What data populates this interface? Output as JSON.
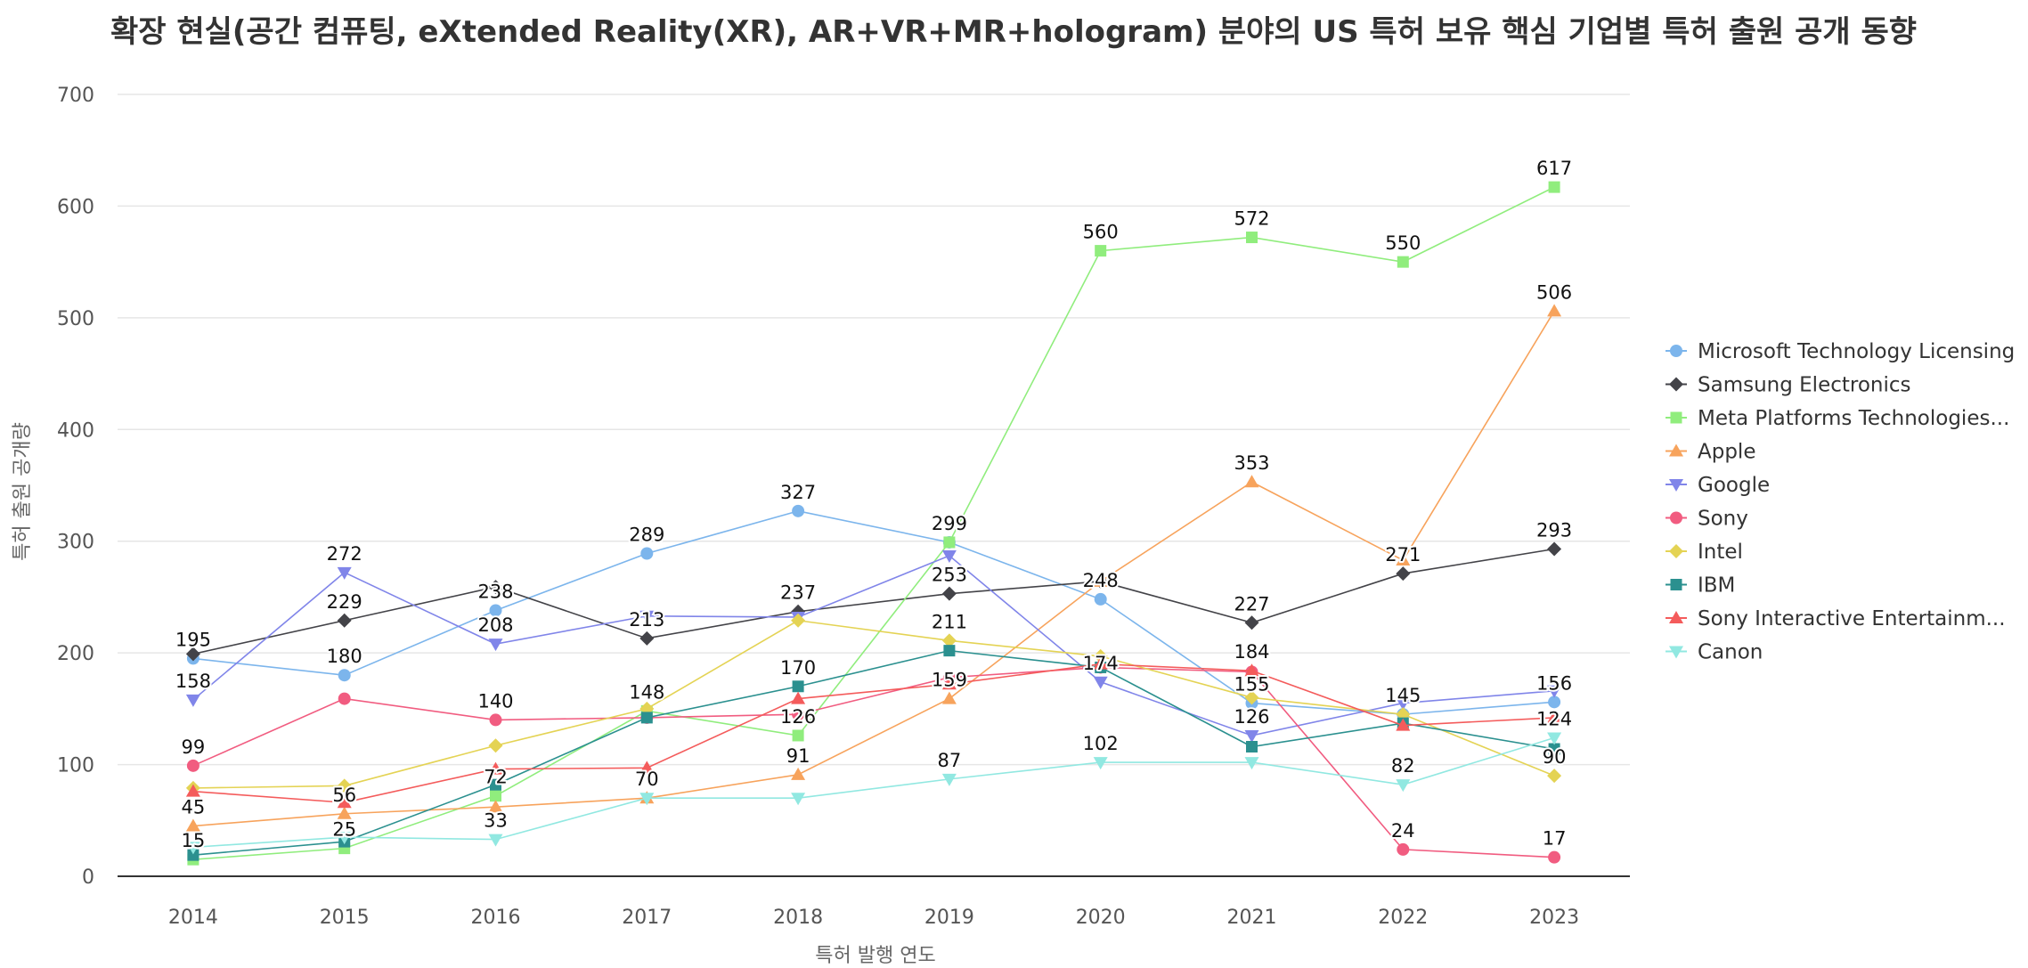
{
  "chart_data": {
    "type": "line",
    "title": "확장 현실(공간 컴퓨팅, eXtended Reality(XR), AR+VR+MR+hologram) 분야의 US 특허 보유 핵심 기업별 특허 출원 공개 동향",
    "xlabel": "특허 발행 연도",
    "ylabel": "특허 출원 공개량",
    "ylim": [
      0,
      700
    ],
    "yticks": [
      0,
      100,
      200,
      300,
      400,
      500,
      600,
      700
    ],
    "categories": [
      "2014",
      "2015",
      "2016",
      "2017",
      "2018",
      "2019",
      "2020",
      "2021",
      "2022",
      "2023"
    ],
    "grid": true,
    "legend_position": "right",
    "series": [
      {
        "name": "Microsoft Technology Licensing",
        "color": "#7cb5ec",
        "marker": "circle",
        "values": [
          195,
          180,
          238,
          289,
          327,
          299,
          248,
          155,
          145,
          156
        ]
      },
      {
        "name": "Samsung Electronics",
        "color": "#434348",
        "marker": "diamond",
        "values": [
          199,
          229,
          259,
          213,
          237,
          253,
          264,
          227,
          271,
          293
        ]
      },
      {
        "name": "Meta Platforms Technologies...",
        "color": "#90ed7d",
        "marker": "square",
        "values": [
          15,
          25,
          72,
          148,
          126,
          299,
          560,
          572,
          550,
          617
        ]
      },
      {
        "name": "Apple",
        "color": "#f7a35c",
        "marker": "triangle",
        "values": [
          45,
          56,
          62,
          70,
          91,
          159,
          264,
          353,
          283,
          506
        ]
      },
      {
        "name": "Google",
        "color": "#8085e9",
        "marker": "triangle-down",
        "values": [
          158,
          272,
          208,
          233,
          232,
          287,
          174,
          126,
          155,
          166
        ]
      },
      {
        "name": "Sony",
        "color": "#f15c80",
        "marker": "circle",
        "values": [
          99,
          159,
          140,
          142,
          145,
          178,
          187,
          183,
          24,
          17
        ]
      },
      {
        "name": "Intel",
        "color": "#e4d354",
        "marker": "diamond",
        "values": [
          79,
          81,
          117,
          150,
          229,
          211,
          197,
          160,
          145,
          90
        ]
      },
      {
        "name": "IBM",
        "color": "#2b908f",
        "marker": "square",
        "values": [
          19,
          31,
          82,
          142,
          170,
          202,
          187,
          116,
          137,
          114
        ]
      },
      {
        "name": "Sony Interactive Entertainm...",
        "color": "#f45b5b",
        "marker": "triangle",
        "values": [
          76,
          66,
          96,
          97,
          159,
          172,
          190,
          184,
          135,
          142
        ]
      },
      {
        "name": "Canon",
        "color": "#91e8e1",
        "marker": "triangle-down",
        "values": [
          26,
          35,
          33,
          70,
          70,
          87,
          102,
          102,
          82,
          124
        ]
      }
    ],
    "data_labels": [
      {
        "category": "2014",
        "value": 195,
        "text": "195"
      },
      {
        "category": "2014",
        "value": 158,
        "text": "158"
      },
      {
        "category": "2014",
        "value": 99,
        "text": "99"
      },
      {
        "category": "2014",
        "value": 45,
        "text": "45"
      },
      {
        "category": "2014",
        "value": 15,
        "text": "15"
      },
      {
        "category": "2015",
        "value": 272,
        "text": "272"
      },
      {
        "category": "2015",
        "value": 229,
        "text": "229"
      },
      {
        "category": "2015",
        "value": 180,
        "text": "180"
      },
      {
        "category": "2015",
        "value": 56,
        "text": "56"
      },
      {
        "category": "2015",
        "value": 25,
        "text": "25"
      },
      {
        "category": "2016",
        "value": 238,
        "text": "238"
      },
      {
        "category": "2016",
        "value": 208,
        "text": "208"
      },
      {
        "category": "2016",
        "value": 140,
        "text": "140"
      },
      {
        "category": "2016",
        "value": 72,
        "text": "72"
      },
      {
        "category": "2016",
        "value": 33,
        "text": "33"
      },
      {
        "category": "2017",
        "value": 289,
        "text": "289"
      },
      {
        "category": "2017",
        "value": 213,
        "text": "213"
      },
      {
        "category": "2017",
        "value": 148,
        "text": "148"
      },
      {
        "category": "2017",
        "value": 70,
        "text": "70"
      },
      {
        "category": "2018",
        "value": 327,
        "text": "327"
      },
      {
        "category": "2018",
        "value": 237,
        "text": "237"
      },
      {
        "category": "2018",
        "value": 170,
        "text": "170"
      },
      {
        "category": "2018",
        "value": 126,
        "text": "126"
      },
      {
        "category": "2018",
        "value": 91,
        "text": "91"
      },
      {
        "category": "2019",
        "value": 299,
        "text": "299"
      },
      {
        "category": "2019",
        "value": 253,
        "text": "253"
      },
      {
        "category": "2019",
        "value": 211,
        "text": "211"
      },
      {
        "category": "2019",
        "value": 159,
        "text": "159"
      },
      {
        "category": "2019",
        "value": 87,
        "text": "87"
      },
      {
        "category": "2020",
        "value": 560,
        "text": "560"
      },
      {
        "category": "2020",
        "value": 248,
        "text": "248"
      },
      {
        "category": "2020",
        "value": 174,
        "text": "174"
      },
      {
        "category": "2020",
        "value": 102,
        "text": "102"
      },
      {
        "category": "2021",
        "value": 572,
        "text": "572"
      },
      {
        "category": "2021",
        "value": 353,
        "text": "353"
      },
      {
        "category": "2021",
        "value": 227,
        "text": "227"
      },
      {
        "category": "2021",
        "value": 184,
        "text": "184"
      },
      {
        "category": "2021",
        "value": 155,
        "text": "155"
      },
      {
        "category": "2021",
        "value": 126,
        "text": "126"
      },
      {
        "category": "2022",
        "value": 550,
        "text": "550"
      },
      {
        "category": "2022",
        "value": 271,
        "text": "271"
      },
      {
        "category": "2022",
        "value": 145,
        "text": "145"
      },
      {
        "category": "2022",
        "value": 82,
        "text": "82"
      },
      {
        "category": "2022",
        "value": 24,
        "text": "24"
      },
      {
        "category": "2023",
        "value": 617,
        "text": "617"
      },
      {
        "category": "2023",
        "value": 506,
        "text": "506"
      },
      {
        "category": "2023",
        "value": 293,
        "text": "293"
      },
      {
        "category": "2023",
        "value": 156,
        "text": "156"
      },
      {
        "category": "2023",
        "value": 124,
        "text": "124"
      },
      {
        "category": "2023",
        "value": 90,
        "text": "90"
      },
      {
        "category": "2023",
        "value": 17,
        "text": "17"
      }
    ]
  }
}
